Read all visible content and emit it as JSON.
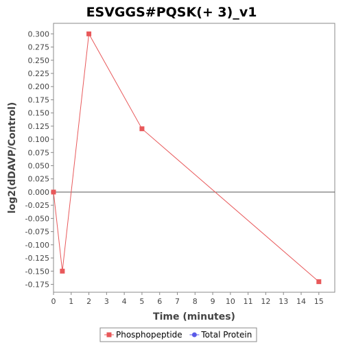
{
  "chart_data": {
    "type": "line",
    "title": "ESVGGS#PQSK(+ 3)_v1",
    "xlabel": "Time (minutes)",
    "ylabel": "log2(dDAVP/Control)",
    "xlim": [
      0,
      15.9
    ],
    "ylim": [
      -0.19,
      0.32
    ],
    "x_ticks": [
      0,
      1,
      2,
      3,
      4,
      5,
      6,
      7,
      8,
      9,
      10,
      11,
      12,
      13,
      14,
      15
    ],
    "x_tick_labels": [
      "0",
      "1",
      "2",
      "3",
      "4",
      "5",
      "6",
      "7",
      "8",
      "9",
      "10",
      "11",
      "12",
      "13",
      "14",
      "15"
    ],
    "y_ticks": [
      0.3,
      0.275,
      0.25,
      0.225,
      0.2,
      0.175,
      0.15,
      0.125,
      0.1,
      0.075,
      0.05,
      0.025,
      0.0,
      -0.025,
      -0.05,
      -0.075,
      -0.1,
      -0.125,
      -0.15,
      -0.175
    ],
    "y_tick_labels": [
      "0.300",
      "0.275",
      "0.250",
      "0.225",
      "0.200",
      "0.175",
      "0.150",
      "0.125",
      "0.100",
      "0.075",
      "0.050",
      "0.025",
      "0.000",
      "-0.025",
      "-0.050",
      "-0.075",
      "-0.100",
      "-0.125",
      "-0.150",
      "-0.175"
    ],
    "grid": false,
    "zero_line": true,
    "legend_position": "bottom",
    "series": [
      {
        "name": "Phosphopeptide",
        "color": "#e8585a",
        "marker": "square",
        "x": [
          0,
          0.5,
          2,
          5,
          15
        ],
        "y": [
          0.0,
          -0.15,
          0.3,
          0.12,
          -0.17
        ]
      },
      {
        "name": "Total Protein",
        "color": "#5a5ae8",
        "marker": "circle",
        "x": [],
        "y": []
      }
    ]
  }
}
